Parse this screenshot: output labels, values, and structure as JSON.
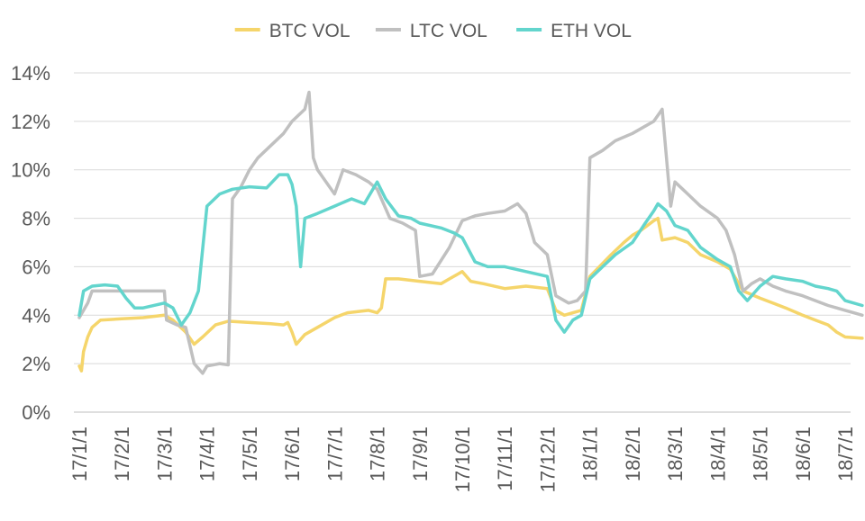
{
  "chart_data": {
    "type": "line",
    "title": "",
    "xlabel": "",
    "ylabel": "",
    "ylim": [
      0,
      14
    ],
    "y_ticks": [
      "0%",
      "2%",
      "4%",
      "6%",
      "8%",
      "10%",
      "12%",
      "14%"
    ],
    "x_ticks": [
      "17/1/1",
      "17/2/1",
      "17/3/1",
      "17/4/1",
      "17/5/1",
      "17/6/1",
      "17/7/1",
      "17/8/1",
      "17/9/1",
      "17/10/1",
      "17/11/1",
      "17/12/1",
      "18/1/1",
      "18/2/1",
      "18/3/1",
      "18/4/1",
      "18/5/1",
      "18/6/1",
      "18/7/1"
    ],
    "grid": true,
    "legend_position": "top",
    "series": [
      {
        "name": "BTC VOL",
        "color": "#f5d56b",
        "points": [
          [
            0,
            1.9
          ],
          [
            0.05,
            1.7
          ],
          [
            0.1,
            2.5
          ],
          [
            0.2,
            3.1
          ],
          [
            0.3,
            3.5
          ],
          [
            0.5,
            3.8
          ],
          [
            1,
            3.85
          ],
          [
            1.5,
            3.9
          ],
          [
            2,
            4.0
          ],
          [
            2.2,
            3.8
          ],
          [
            2.5,
            3.3
          ],
          [
            2.7,
            2.8
          ],
          [
            2.9,
            3.1
          ],
          [
            3.2,
            3.6
          ],
          [
            3.5,
            3.75
          ],
          [
            4,
            3.7
          ],
          [
            4.5,
            3.65
          ],
          [
            4.8,
            3.6
          ],
          [
            4.9,
            3.7
          ],
          [
            5.0,
            3.3
          ],
          [
            5.1,
            2.8
          ],
          [
            5.3,
            3.2
          ],
          [
            5.6,
            3.5
          ],
          [
            6,
            3.9
          ],
          [
            6.3,
            4.1
          ],
          [
            6.8,
            4.2
          ],
          [
            7.0,
            4.1
          ],
          [
            7.1,
            4.3
          ],
          [
            7.2,
            5.5
          ],
          [
            7.5,
            5.5
          ],
          [
            8,
            5.4
          ],
          [
            8.5,
            5.3
          ],
          [
            8.7,
            5.5
          ],
          [
            9.0,
            5.8
          ],
          [
            9.2,
            5.4
          ],
          [
            9.5,
            5.3
          ],
          [
            10,
            5.1
          ],
          [
            10.5,
            5.2
          ],
          [
            11,
            5.1
          ],
          [
            11.2,
            4.2
          ],
          [
            11.4,
            4.0
          ],
          [
            11.6,
            4.1
          ],
          [
            11.8,
            4.2
          ],
          [
            12,
            5.6
          ],
          [
            12.5,
            6.5
          ],
          [
            12.8,
            7.0
          ],
          [
            13,
            7.3
          ],
          [
            13.2,
            7.5
          ],
          [
            13.5,
            7.9
          ],
          [
            13.6,
            8.0
          ],
          [
            13.7,
            7.1
          ],
          [
            14,
            7.2
          ],
          [
            14.3,
            7.0
          ],
          [
            14.6,
            6.5
          ],
          [
            15,
            6.2
          ],
          [
            15.3,
            5.9
          ],
          [
            15.6,
            5.0
          ],
          [
            16,
            4.7
          ],
          [
            16.3,
            4.5
          ],
          [
            16.6,
            4.3
          ],
          [
            17,
            4.0
          ],
          [
            17.3,
            3.8
          ],
          [
            17.6,
            3.6
          ],
          [
            17.8,
            3.3
          ],
          [
            18,
            3.1
          ],
          [
            18.4,
            3.05
          ]
        ]
      },
      {
        "name": "LTC VOL",
        "color": "#c0c0c0",
        "points": [
          [
            0,
            3.9
          ],
          [
            0.1,
            4.2
          ],
          [
            0.2,
            4.5
          ],
          [
            0.3,
            5.0
          ],
          [
            1,
            5.0
          ],
          [
            1.5,
            5.0
          ],
          [
            2,
            5.0
          ],
          [
            2.05,
            3.8
          ],
          [
            2.3,
            3.6
          ],
          [
            2.5,
            3.5
          ],
          [
            2.7,
            2.0
          ],
          [
            2.9,
            1.6
          ],
          [
            3.0,
            1.9
          ],
          [
            3.3,
            2.0
          ],
          [
            3.5,
            1.95
          ],
          [
            3.6,
            8.8
          ],
          [
            3.8,
            9.3
          ],
          [
            4.0,
            10.0
          ],
          [
            4.2,
            10.5
          ],
          [
            4.5,
            11.0
          ],
          [
            4.8,
            11.5
          ],
          [
            5.0,
            12.0
          ],
          [
            5.3,
            12.5
          ],
          [
            5.4,
            13.2
          ],
          [
            5.5,
            10.5
          ],
          [
            5.6,
            10.0
          ],
          [
            5.8,
            9.5
          ],
          [
            6.0,
            9.0
          ],
          [
            6.2,
            10.0
          ],
          [
            6.5,
            9.8
          ],
          [
            6.8,
            9.5
          ],
          [
            7.0,
            9.2
          ],
          [
            7.3,
            8.0
          ],
          [
            7.6,
            7.8
          ],
          [
            7.9,
            7.5
          ],
          [
            8.0,
            5.6
          ],
          [
            8.3,
            5.7
          ],
          [
            8.7,
            6.8
          ],
          [
            9.0,
            7.9
          ],
          [
            9.3,
            8.1
          ],
          [
            9.6,
            8.2
          ],
          [
            10,
            8.3
          ],
          [
            10.3,
            8.6
          ],
          [
            10.5,
            8.2
          ],
          [
            10.7,
            7.0
          ],
          [
            11,
            6.5
          ],
          [
            11.2,
            4.8
          ],
          [
            11.5,
            4.5
          ],
          [
            11.7,
            4.6
          ],
          [
            11.9,
            5.0
          ],
          [
            12.0,
            10.5
          ],
          [
            12.3,
            10.8
          ],
          [
            12.6,
            11.2
          ],
          [
            13,
            11.5
          ],
          [
            13.3,
            11.8
          ],
          [
            13.5,
            12.0
          ],
          [
            13.7,
            12.5
          ],
          [
            13.9,
            8.5
          ],
          [
            14,
            9.5
          ],
          [
            14.3,
            9.0
          ],
          [
            14.6,
            8.5
          ],
          [
            15,
            8.0
          ],
          [
            15.2,
            7.5
          ],
          [
            15.4,
            6.5
          ],
          [
            15.6,
            5.0
          ],
          [
            15.8,
            5.3
          ],
          [
            16,
            5.5
          ],
          [
            16.3,
            5.2
          ],
          [
            16.6,
            5.0
          ],
          [
            17,
            4.8
          ],
          [
            17.3,
            4.6
          ],
          [
            17.6,
            4.4
          ],
          [
            17.8,
            4.3
          ],
          [
            18,
            4.2
          ],
          [
            18.2,
            4.1
          ],
          [
            18.4,
            4.0
          ]
        ]
      },
      {
        "name": "ETH VOL",
        "color": "#63d5cd",
        "points": [
          [
            0,
            4.0
          ],
          [
            0.1,
            5.0
          ],
          [
            0.3,
            5.2
          ],
          [
            0.6,
            5.25
          ],
          [
            0.9,
            5.2
          ],
          [
            1.1,
            4.7
          ],
          [
            1.3,
            4.3
          ],
          [
            1.5,
            4.3
          ],
          [
            2,
            4.5
          ],
          [
            2.2,
            4.3
          ],
          [
            2.4,
            3.6
          ],
          [
            2.6,
            4.1
          ],
          [
            2.8,
            5.0
          ],
          [
            3.0,
            8.5
          ],
          [
            3.3,
            9.0
          ],
          [
            3.6,
            9.2
          ],
          [
            4,
            9.3
          ],
          [
            4.4,
            9.25
          ],
          [
            4.7,
            9.8
          ],
          [
            4.9,
            9.8
          ],
          [
            5.0,
            9.4
          ],
          [
            5.1,
            8.5
          ],
          [
            5.2,
            6.0
          ],
          [
            5.3,
            8.0
          ],
          [
            5.6,
            8.2
          ],
          [
            6,
            8.5
          ],
          [
            6.4,
            8.8
          ],
          [
            6.7,
            8.6
          ],
          [
            7.0,
            9.5
          ],
          [
            7.2,
            8.8
          ],
          [
            7.5,
            8.1
          ],
          [
            7.8,
            8.0
          ],
          [
            8,
            7.8
          ],
          [
            8.5,
            7.6
          ],
          [
            8.8,
            7.4
          ],
          [
            9,
            7.2
          ],
          [
            9.3,
            6.2
          ],
          [
            9.6,
            6.0
          ],
          [
            10,
            6.0
          ],
          [
            10.5,
            5.8
          ],
          [
            11,
            5.6
          ],
          [
            11.2,
            3.8
          ],
          [
            11.4,
            3.3
          ],
          [
            11.6,
            3.8
          ],
          [
            11.8,
            4.0
          ],
          [
            12,
            5.5
          ],
          [
            12.3,
            6.0
          ],
          [
            12.6,
            6.5
          ],
          [
            13,
            7.0
          ],
          [
            13.3,
            7.8
          ],
          [
            13.5,
            8.3
          ],
          [
            13.6,
            8.6
          ],
          [
            13.8,
            8.3
          ],
          [
            14,
            7.7
          ],
          [
            14.3,
            7.5
          ],
          [
            14.6,
            6.8
          ],
          [
            15,
            6.3
          ],
          [
            15.3,
            6.0
          ],
          [
            15.5,
            5.0
          ],
          [
            15.7,
            4.6
          ],
          [
            16,
            5.2
          ],
          [
            16.3,
            5.6
          ],
          [
            16.6,
            5.5
          ],
          [
            17,
            5.4
          ],
          [
            17.3,
            5.2
          ],
          [
            17.6,
            5.1
          ],
          [
            17.8,
            5.0
          ],
          [
            18,
            4.6
          ],
          [
            18.4,
            4.4
          ]
        ]
      }
    ]
  }
}
